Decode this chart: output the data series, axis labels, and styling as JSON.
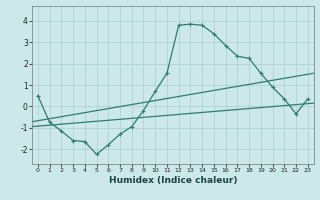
{
  "xlabel": "Humidex (Indice chaleur)",
  "bg_color": "#cce8e8",
  "line_color": "#2e7d6e",
  "grid_color": "#aacfcf",
  "xlim": [
    -0.5,
    23.5
  ],
  "ylim": [
    -2.7,
    4.7
  ],
  "yticks": [
    -2,
    -1,
    0,
    1,
    2,
    3,
    4
  ],
  "xticks": [
    0,
    1,
    2,
    3,
    4,
    5,
    6,
    7,
    8,
    9,
    10,
    11,
    12,
    13,
    14,
    15,
    16,
    17,
    18,
    19,
    20,
    21,
    22,
    23
  ],
  "main_y": [
    0.5,
    -0.75,
    -1.15,
    -1.6,
    -1.65,
    -2.25,
    -1.8,
    -1.3,
    -0.95,
    -0.2,
    0.7,
    1.55,
    3.8,
    3.85,
    3.8,
    3.4,
    2.85,
    2.35,
    2.25,
    1.55,
    0.9,
    0.35,
    -0.35,
    0.35
  ],
  "upper_line": [
    [
      -0.5,
      23.5
    ],
    [
      -0.72,
      1.55
    ]
  ],
  "lower_line": [
    [
      -0.5,
      23.5
    ],
    [
      -0.95,
      0.15
    ]
  ]
}
